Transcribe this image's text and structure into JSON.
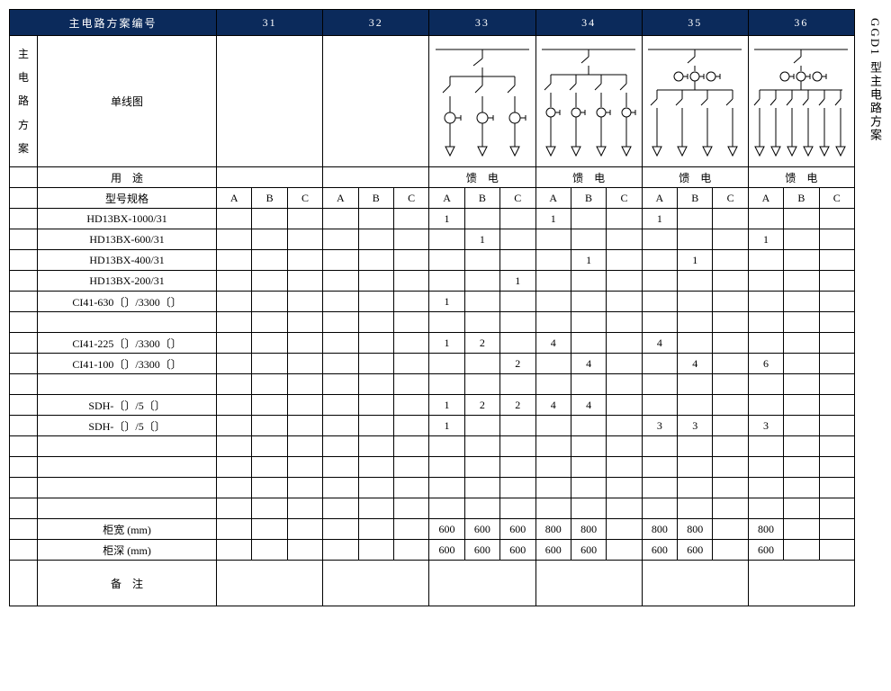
{
  "side_title": "GGD1 型主电路方案",
  "header": {
    "main": "主电路方案编号",
    "cols": [
      "31",
      "32",
      "33",
      "34",
      "35",
      "36"
    ]
  },
  "row_group_label": "主电路方案",
  "diagram_label": "单线图",
  "usage": {
    "label": "用　途",
    "values": {
      "33": "馈　电",
      "34": "馈　电",
      "35": "馈　电",
      "36": "馈　电"
    }
  },
  "spec_header": "型号规格",
  "sub_headers": [
    "A",
    "B",
    "C"
  ],
  "spec_rows": [
    {
      "label": "HD13BX-1000/31",
      "cells": {
        "33A": "1",
        "34A": "1",
        "35A": "1"
      }
    },
    {
      "label": "HD13BX-600/31",
      "cells": {
        "33B": "1",
        "36A": "1"
      }
    },
    {
      "label": "HD13BX-400/31",
      "cells": {
        "34B": "1",
        "35B": "1"
      }
    },
    {
      "label": "HD13BX-200/31",
      "cells": {
        "33C": "1"
      }
    },
    {
      "label": "CI41-630〔〕/3300〔〕",
      "cells": {
        "33A": "1"
      }
    },
    {
      "label": "",
      "cells": {}
    },
    {
      "label": "CI41-225〔〕/3300〔〕",
      "cells": {
        "33A": "1",
        "33B": "2",
        "34A": "4",
        "35A": "4"
      }
    },
    {
      "label": "CI41-100〔〕/3300〔〕",
      "cells": {
        "33C": "2",
        "34B": "4",
        "35B": "4",
        "36A": "6"
      }
    },
    {
      "label": "",
      "cells": {}
    },
    {
      "label": "SDH-〔〕/5〔〕",
      "cells": {
        "33A": "1",
        "33B": "2",
        "33C": "2",
        "34A": "4",
        "34B": "4"
      }
    },
    {
      "label": "SDH-〔〕/5〔〕",
      "cells": {
        "33A": "1",
        "35A": "3",
        "35B": "3",
        "36A": "3"
      }
    },
    {
      "label": "",
      "cells": {}
    },
    {
      "label": "",
      "cells": {}
    },
    {
      "label": "",
      "cells": {}
    },
    {
      "label": "",
      "cells": {}
    }
  ],
  "cabinet_rows": [
    {
      "label": "柜宽 (mm)",
      "cells": {
        "33A": "600",
        "33B": "600",
        "33C": "600",
        "34A": "800",
        "34B": "800",
        "35A": "800",
        "35B": "800",
        "36A": "800"
      }
    },
    {
      "label": "柜深 (mm)",
      "cells": {
        "33A": "600",
        "33B": "600",
        "33C": "600",
        "34A": "600",
        "34B": "600",
        "35A": "600",
        "35B": "600",
        "36A": "600"
      }
    }
  ],
  "notes_label": "备　注",
  "colors": {
    "header_bg": "#0b2a5b",
    "header_fg": "#ffffff",
    "border": "#000000"
  }
}
